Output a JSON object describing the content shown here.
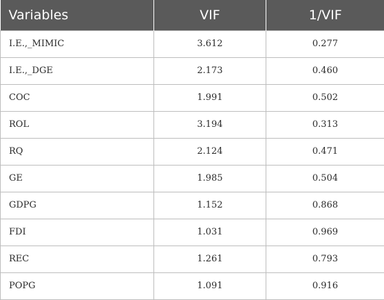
{
  "table": {
    "headers": {
      "variables": "Variables",
      "vif": "VIF",
      "inv_vif": "1/VIF"
    },
    "rows": [
      {
        "variable": "I.E.,_MIMIC",
        "vif": "3.612",
        "inv_vif": "0.277"
      },
      {
        "variable": "I.E.,_DGE",
        "vif": "2.173",
        "inv_vif": "0.460"
      },
      {
        "variable": "COC",
        "vif": "1.991",
        "inv_vif": "0.502"
      },
      {
        "variable": "ROL",
        "vif": "3.194",
        "inv_vif": "0.313"
      },
      {
        "variable": "RQ",
        "vif": "2.124",
        "inv_vif": "0.471"
      },
      {
        "variable": "GE",
        "vif": "1.985",
        "inv_vif": "0.504"
      },
      {
        "variable": "GDPG",
        "vif": "1.152",
        "inv_vif": "0.868"
      },
      {
        "variable": "FDI",
        "vif": "1.031",
        "inv_vif": "0.969"
      },
      {
        "variable": "REC",
        "vif": "1.261",
        "inv_vif": "0.793"
      },
      {
        "variable": "POPG",
        "vif": "1.091",
        "inv_vif": "0.916"
      }
    ]
  }
}
